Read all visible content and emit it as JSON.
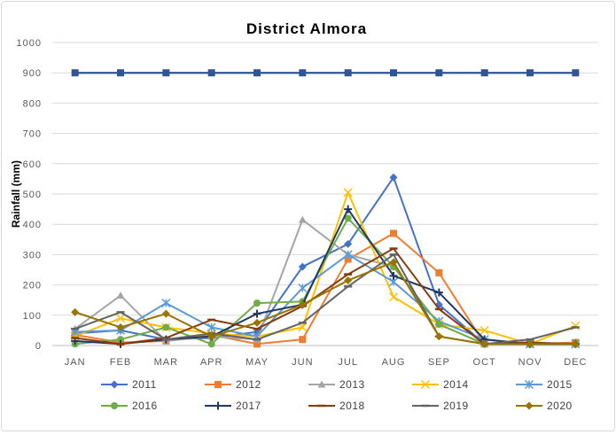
{
  "chart_data": {
    "type": "line",
    "title": "District Almora",
    "xlabel": "",
    "ylabel": "Rainfall (mm)",
    "ylim": [
      0,
      1000
    ],
    "yticks": [
      0,
      100,
      200,
      300,
      400,
      500,
      600,
      700,
      800,
      900,
      1000
    ],
    "grid": true,
    "legend_position": "bottom",
    "categories": [
      "JAN",
      "FEB",
      "MAR",
      "APR",
      "MAY",
      "JUN",
      "JUL",
      "AUG",
      "SEP",
      "OCT",
      "NOV",
      "DEC"
    ],
    "reference_line": {
      "value": 900,
      "color": "#2f5597",
      "marker": "square"
    },
    "series": [
      {
        "name": "2011",
        "color": "#4472c4",
        "marker": "diamond",
        "values": [
          40,
          50,
          20,
          25,
          45,
          260,
          335,
          555,
          135,
          5,
          5,
          5
        ]
      },
      {
        "name": "2012",
        "color": "#ed7d31",
        "marker": "square",
        "values": [
          35,
          10,
          15,
          35,
          5,
          20,
          285,
          370,
          240,
          5,
          5,
          10
        ]
      },
      {
        "name": "2013",
        "color": "#a5a5a5",
        "marker": "triangle",
        "values": [
          55,
          165,
          15,
          30,
          20,
          415,
          300,
          260,
          70,
          5,
          10,
          5
        ]
      },
      {
        "name": "2014",
        "color": "#ffc000",
        "marker": "x",
        "values": [
          30,
          90,
          60,
          40,
          30,
          60,
          505,
          160,
          70,
          50,
          5,
          65
        ]
      },
      {
        "name": "2015",
        "color": "#5b9bd5",
        "marker": "star",
        "values": [
          45,
          50,
          140,
          60,
          30,
          190,
          300,
          210,
          80,
          20,
          5,
          5
        ]
      },
      {
        "name": "2016",
        "color": "#70ad47",
        "marker": "circle",
        "values": [
          5,
          20,
          60,
          5,
          140,
          145,
          420,
          260,
          70,
          5,
          5,
          5
        ]
      },
      {
        "name": "2017",
        "color": "#203864",
        "marker": "plus",
        "values": [
          15,
          5,
          20,
          30,
          105,
          135,
          450,
          230,
          175,
          20,
          5,
          5
        ]
      },
      {
        "name": "2018",
        "color": "#843c0c",
        "marker": "dash",
        "values": [
          25,
          5,
          25,
          85,
          55,
          130,
          235,
          320,
          120,
          5,
          10,
          5
        ]
      },
      {
        "name": "2019",
        "color": "#636363",
        "marker": "dash",
        "values": [
          55,
          110,
          20,
          40,
          20,
          75,
          195,
          300,
          30,
          5,
          20,
          60
        ]
      },
      {
        "name": "2020",
        "color": "#997300",
        "marker": "diamond",
        "values": [
          110,
          60,
          105,
          30,
          75,
          135,
          215,
          275,
          30,
          5,
          5,
          5
        ]
      }
    ]
  }
}
